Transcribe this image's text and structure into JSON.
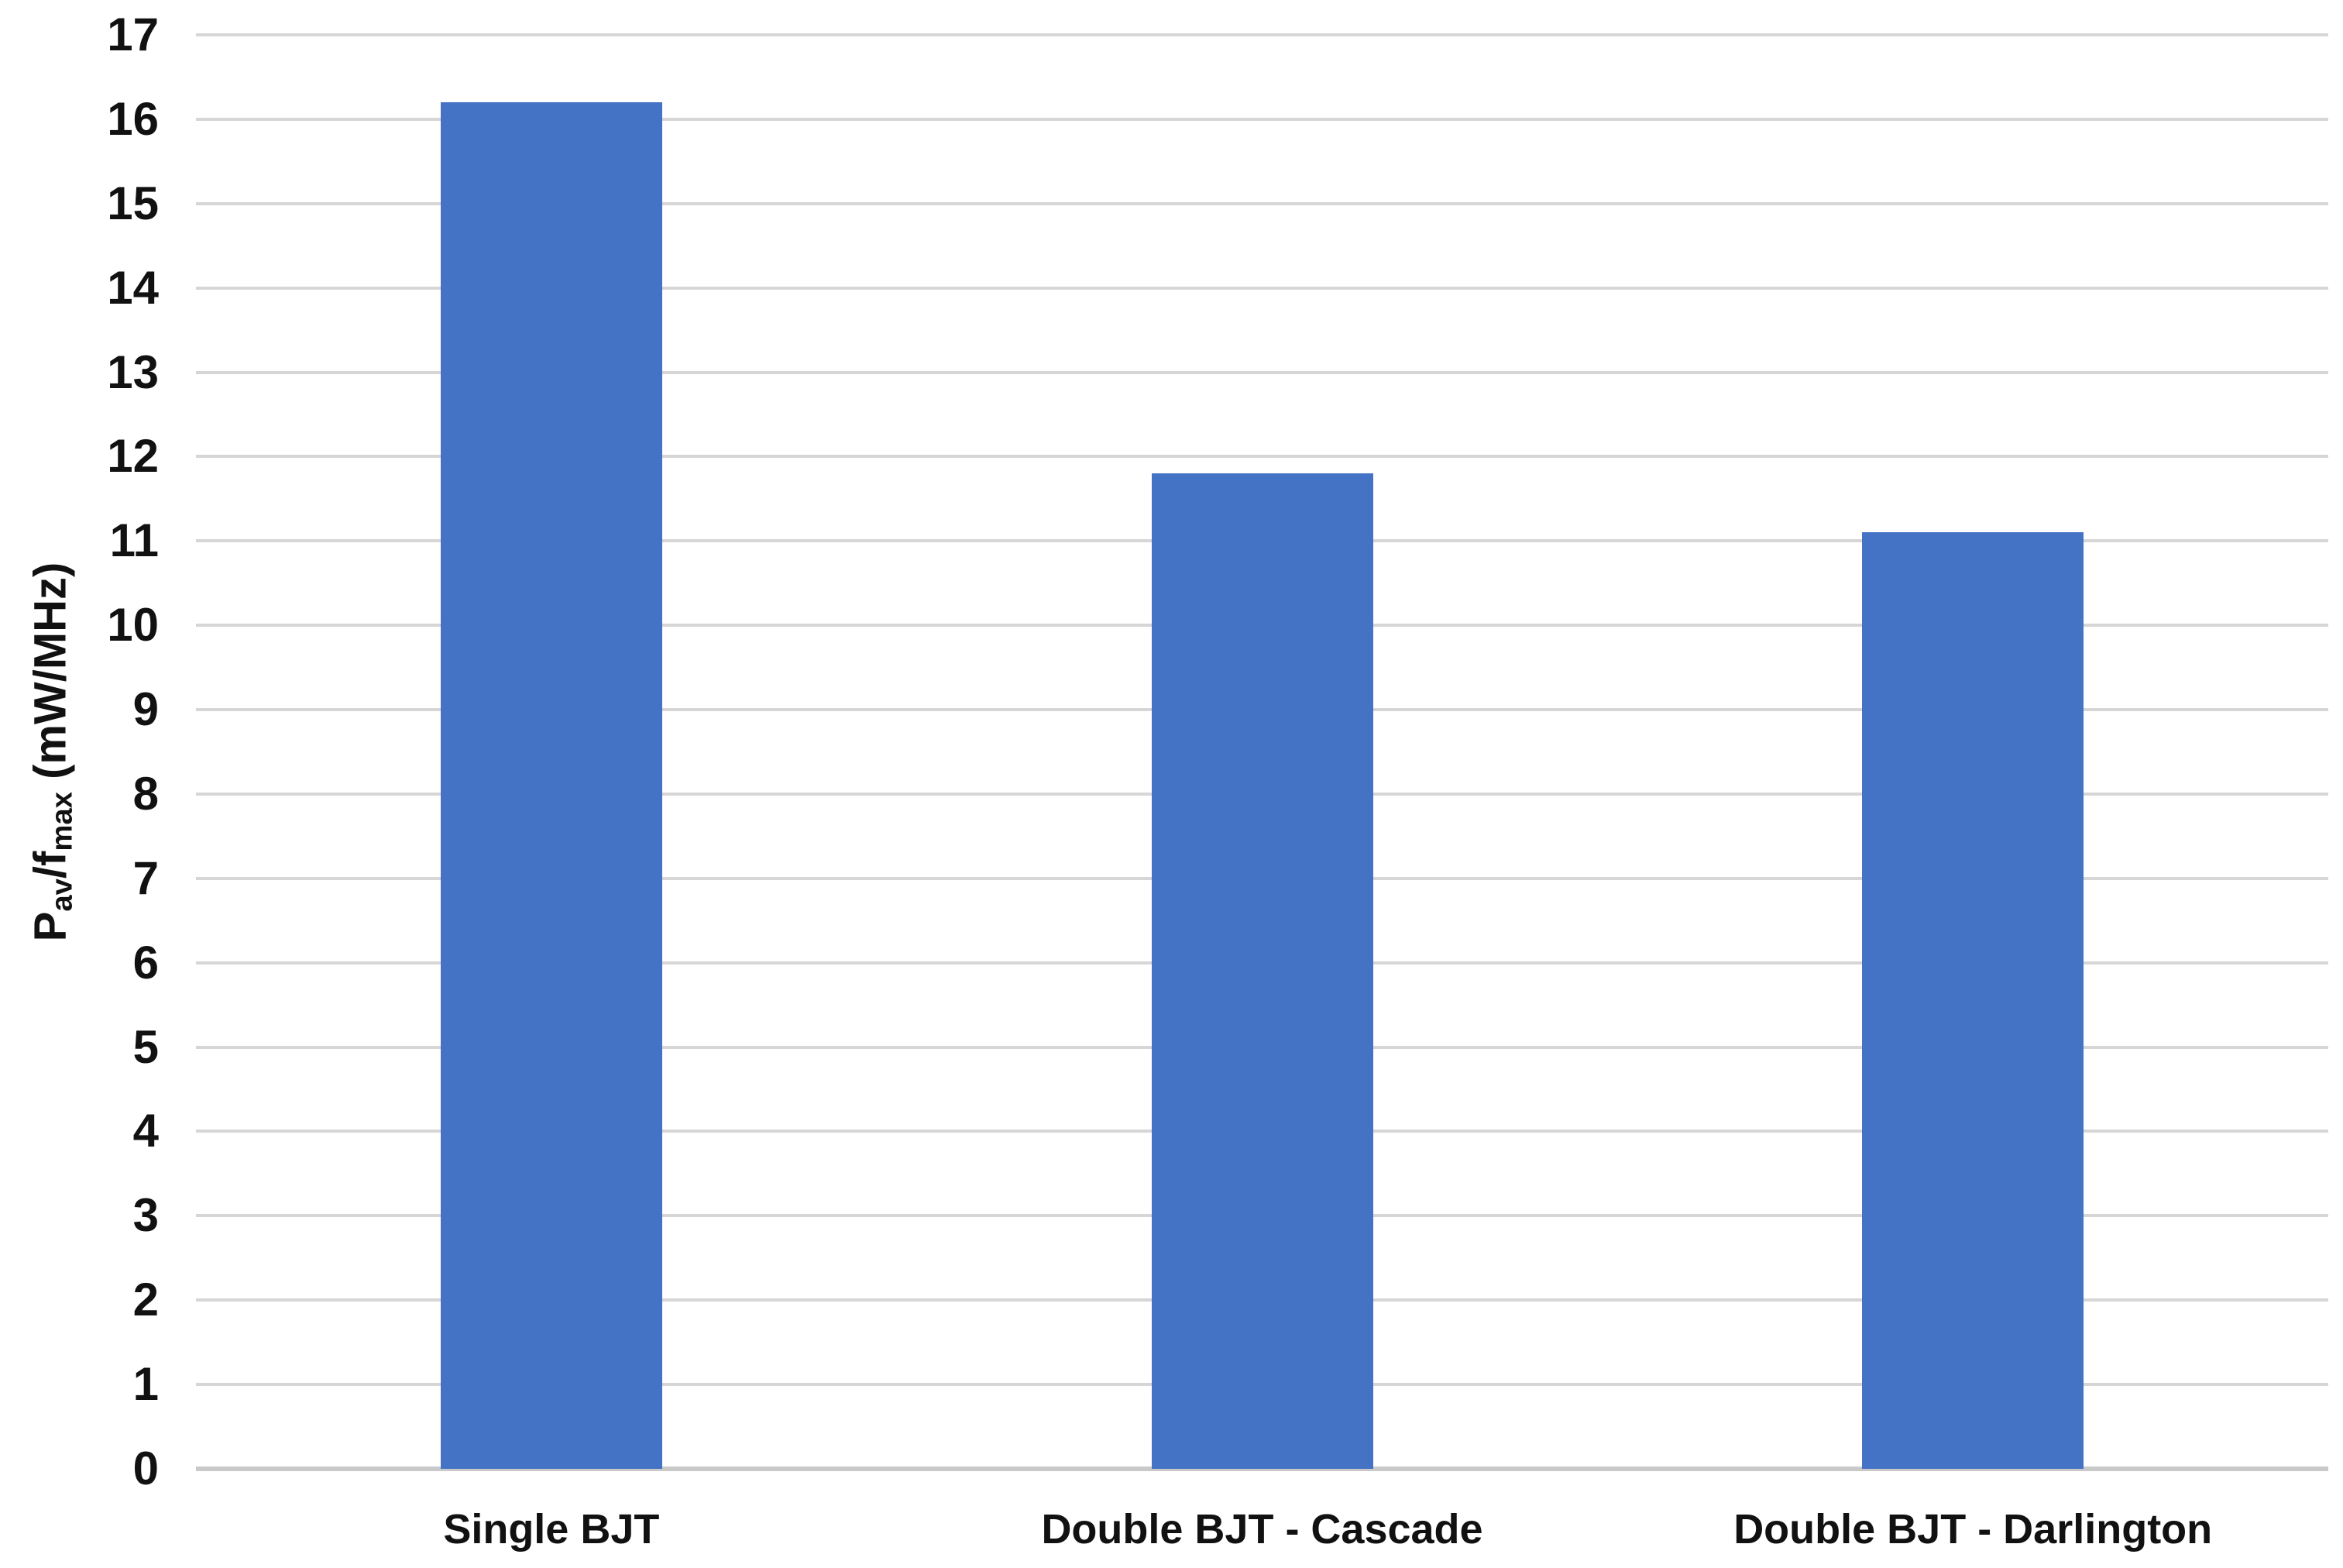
{
  "chart_data": {
    "type": "bar",
    "title": "",
    "xlabel": "",
    "ylabel": "Pav/fmax (mW/MHz)",
    "ylabel_parts": {
      "prefix": "P",
      "sub1": "av",
      "mid": "/f",
      "sub2": "max",
      "suffix": " (mW/MHz)"
    },
    "categories": [
      "Single BJT",
      "Double BJT - Cascade",
      "Double BJT - Darlington"
    ],
    "values": [
      16.2,
      11.8,
      11.1
    ],
    "ylim": [
      0,
      17
    ],
    "ytick_step": 1,
    "yticks": [
      0,
      1,
      2,
      3,
      4,
      5,
      6,
      7,
      8,
      9,
      10,
      11,
      12,
      13,
      14,
      15,
      16,
      17
    ],
    "grid": true,
    "legend": false,
    "colors": {
      "bar": "#4472c4",
      "gridline": "#d6d6d6",
      "axis_line": "#c9c9c9",
      "text": "#111111",
      "background": "#ffffff"
    }
  }
}
